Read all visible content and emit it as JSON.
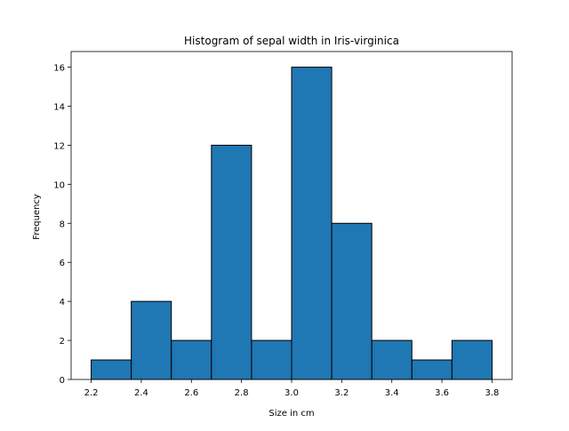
{
  "chart_data": {
    "type": "bar",
    "title": "Histogram of sepal width in Iris-virginica",
    "xlabel": "Size in cm",
    "ylabel": "Frequency",
    "bin_edges": [
      2.2,
      2.36,
      2.52,
      2.68,
      2.84,
      3.0,
      3.16,
      3.32,
      3.48,
      3.64,
      3.8
    ],
    "values": [
      1,
      4,
      2,
      12,
      2,
      16,
      8,
      2,
      1,
      2
    ],
    "xlim": [
      2.12,
      3.88
    ],
    "ylim": [
      0,
      16.8
    ],
    "xticks": [
      2.2,
      2.4,
      2.6,
      2.8,
      3.0,
      3.2,
      3.4,
      3.6,
      3.8
    ],
    "xtick_labels": [
      "2.2",
      "2.4",
      "2.6",
      "2.8",
      "3.0",
      "3.2",
      "3.4",
      "3.6",
      "3.8"
    ],
    "yticks": [
      0,
      2,
      4,
      6,
      8,
      10,
      12,
      14,
      16
    ],
    "ytick_labels": [
      "0",
      "2",
      "4",
      "6",
      "8",
      "10",
      "12",
      "14",
      "16"
    ],
    "bar_color": "#1f77b4",
    "edge_color": "#000000",
    "grid": false,
    "legend": "none"
  }
}
